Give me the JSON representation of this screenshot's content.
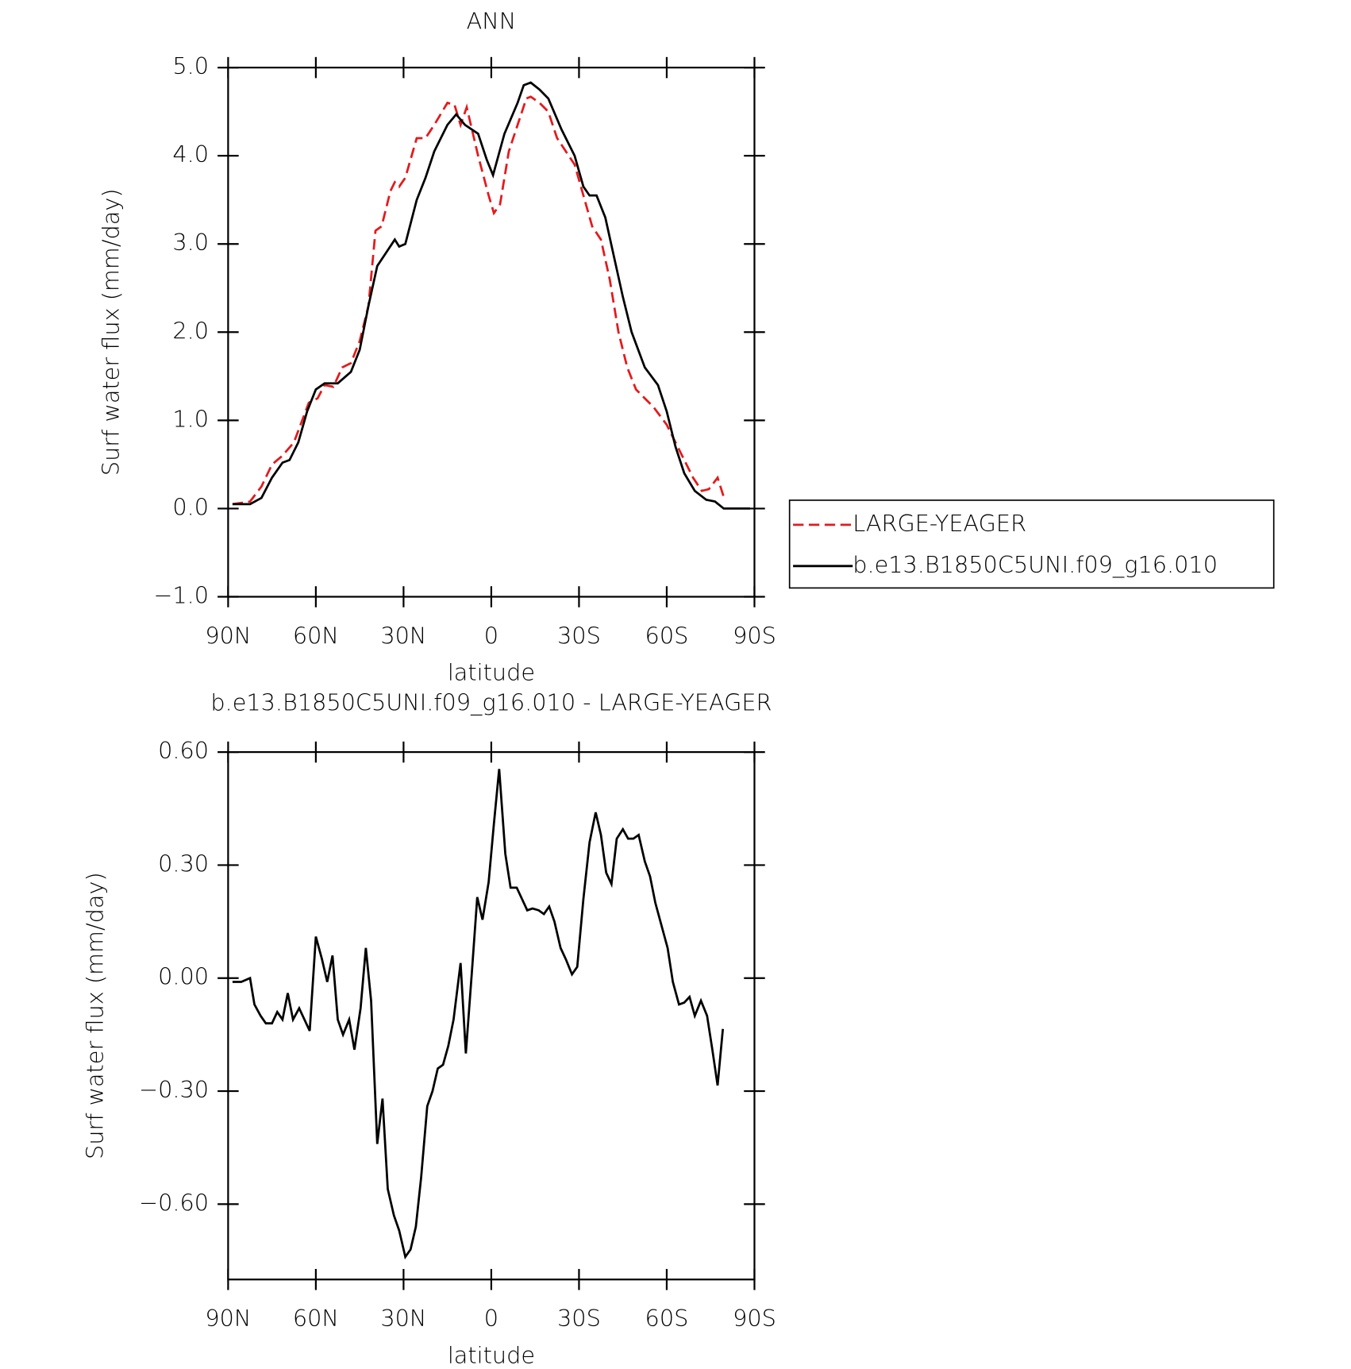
{
  "chart_data": [
    {
      "type": "line",
      "title": "ANN",
      "xlabel": "latitude",
      "ylabel": "Surf water flux (mm/day)",
      "xlim": [
        90,
        -90
      ],
      "xticks": [
        {
          "value": 90,
          "label": "90N"
        },
        {
          "value": 60,
          "label": "60N"
        },
        {
          "value": 30,
          "label": "30N"
        },
        0,
        {
          "value": -30,
          "label": "30S"
        },
        {
          "value": -60,
          "label": "60S"
        },
        {
          "value": -90,
          "label": "90S"
        }
      ],
      "ylim": [
        -1,
        5
      ],
      "yticks": [
        {
          "value": 5,
          "label": "5.0"
        },
        {
          "value": 4,
          "label": "4.0"
        },
        {
          "value": 3,
          "label": "3.0"
        },
        {
          "value": 2,
          "label": "2.0"
        },
        {
          "value": 1,
          "label": "1.0"
        },
        {
          "value": 0,
          "label": "0.0"
        },
        {
          "value": -1,
          "label": "−1.0"
        }
      ],
      "legend": "right",
      "series": [
        {
          "name": "LARGE-YEAGER",
          "color": "#e41a1c",
          "dash": true,
          "x": [
            88.5,
            82.5,
            78.6,
            75,
            71.4,
            67.5,
            62.4,
            59.4,
            57,
            54,
            51,
            48,
            45,
            42,
            39.6,
            37.5,
            34.5,
            33,
            31.5,
            29.4,
            25.5,
            22.5,
            19.5,
            15,
            12.6,
            10.5,
            8.4,
            4.5,
            0.9,
            -0.9,
            -3,
            -6,
            -9,
            -12,
            -13.5,
            -16.5,
            -19.5,
            -22.5,
            -25.5,
            -28.5,
            -31.5,
            -34.5,
            -37.5,
            -40.5,
            -43.5,
            -46.5,
            -49.5,
            -52.5,
            -55.5,
            -60,
            -66,
            -69,
            -72,
            -74.4,
            -77.4,
            -79.8
          ],
          "values": [
            0.05,
            0.08,
            0.25,
            0.5,
            0.6,
            0.75,
            1.2,
            1.25,
            1.4,
            1.38,
            1.6,
            1.65,
            1.9,
            2.3,
            3.15,
            3.2,
            3.6,
            3.7,
            3.65,
            3.75,
            4.2,
            4.2,
            4.35,
            4.6,
            4.58,
            4.35,
            4.55,
            4.0,
            3.55,
            3.35,
            3.45,
            4.05,
            4.35,
            4.65,
            4.67,
            4.6,
            4.5,
            4.2,
            4.05,
            3.9,
            3.55,
            3.2,
            3.05,
            2.6,
            2.0,
            1.6,
            1.35,
            1.25,
            1.15,
            0.95,
            0.55,
            0.35,
            0.2,
            0.22,
            0.35,
            0.1
          ]
        },
        {
          "name": "b.e13.B1850C5UNI.f09_g16.010",
          "color": "#000000",
          "dash": false,
          "x": [
            88.5,
            82.5,
            78.6,
            75,
            71.4,
            69,
            66,
            63,
            60,
            57,
            52.5,
            48,
            45,
            42,
            39,
            36,
            33,
            31.5,
            29.4,
            25.5,
            22.5,
            19.5,
            15,
            12,
            9,
            4.5,
            1.5,
            -0.6,
            -4.5,
            -9,
            -11.1,
            -13.5,
            -16.5,
            -19.5,
            -24,
            -28.5,
            -31.5,
            -33.6,
            -36,
            -39,
            -42,
            -45,
            -48,
            -52.5,
            -57,
            -60,
            -63,
            -66,
            -69.6,
            -73.5,
            -76.5,
            -79.5,
            -84,
            -88.5
          ],
          "values": [
            0.05,
            0.05,
            0.12,
            0.35,
            0.52,
            0.55,
            0.75,
            1.1,
            1.35,
            1.42,
            1.42,
            1.55,
            1.8,
            2.3,
            2.75,
            2.9,
            3.05,
            2.97,
            3.0,
            3.5,
            3.75,
            4.05,
            4.35,
            4.47,
            4.35,
            4.25,
            3.95,
            3.78,
            4.25,
            4.6,
            4.8,
            4.83,
            4.75,
            4.65,
            4.3,
            4.0,
            3.65,
            3.55,
            3.55,
            3.3,
            2.85,
            2.4,
            2.0,
            1.6,
            1.4,
            1.1,
            0.7,
            0.4,
            0.2,
            0.1,
            0.08,
            0.0,
            0.0,
            0.0
          ]
        }
      ]
    },
    {
      "type": "line",
      "title": "b.e13.B1850C5UNI.f09_g16.010 - LARGE-YEAGER",
      "xlabel": "latitude",
      "ylabel": "Surf water flux (mm/day)",
      "xlim": [
        90,
        -90
      ],
      "xticks": [
        {
          "value": 90,
          "label": "90N"
        },
        {
          "value": 60,
          "label": "60N"
        },
        {
          "value": 30,
          "label": "30N"
        },
        0,
        {
          "value": -30,
          "label": "30S"
        },
        {
          "value": -60,
          "label": "60S"
        },
        {
          "value": -90,
          "label": "90S"
        }
      ],
      "ylim": [
        -0.8,
        0.6
      ],
      "yticks": [
        {
          "value": 0.6,
          "label": "0.60"
        },
        {
          "value": 0.3,
          "label": "0.30"
        },
        {
          "value": 0,
          "label": "0.00"
        },
        {
          "value": -0.3,
          "label": "−0.30"
        },
        {
          "value": -0.6,
          "label": "−0.60"
        }
      ],
      "series": [
        {
          "color": "#000000",
          "dash": false,
          "x": [
            88.5,
            85.5,
            82.5,
            81,
            78.9,
            77.1,
            75,
            73.2,
            71.4,
            69.6,
            67.8,
            65.7,
            63.9,
            62.1,
            60,
            57.9,
            56.1,
            54.3,
            52.5,
            50.7,
            48.6,
            46.8,
            44.7,
            42.9,
            41.1,
            39,
            37.2,
            35.4,
            33.3,
            31.5,
            29.4,
            27.6,
            25.8,
            24,
            21.9,
            20.1,
            18.3,
            16.5,
            14.7,
            12.9,
            10.5,
            8.7,
            6.6,
            4.8,
            3,
            0.9,
            -0.9,
            -2.7,
            -4.8,
            -6.6,
            -8.7,
            -10.5,
            -12.3,
            -14.1,
            -16.2,
            -18,
            -19.8,
            -21.6,
            -23.7,
            -25.5,
            -27.6,
            -29.4,
            -31.5,
            -33.6,
            -35.7,
            -37.5,
            -39.3,
            -41.1,
            -42.9,
            -45,
            -46.8,
            -48.6,
            -50.4,
            -52.5,
            -54.3,
            -56.1,
            -58.2,
            -60.3,
            -62.1,
            -64.2,
            -66,
            -67.8,
            -69.6,
            -71.7,
            -73.8,
            -75.6,
            -77.4,
            -79.2
          ],
          "values": [
            -0.01,
            -0.01,
            0.0,
            -0.07,
            -0.1,
            -0.12,
            -0.12,
            -0.09,
            -0.11,
            -0.04,
            -0.11,
            -0.08,
            -0.11,
            -0.14,
            0.11,
            0.05,
            -0.01,
            0.06,
            -0.11,
            -0.15,
            -0.11,
            -0.19,
            -0.08,
            0.08,
            -0.06,
            -0.44,
            -0.32,
            -0.56,
            -0.63,
            -0.67,
            -0.74,
            -0.72,
            -0.66,
            -0.53,
            -0.34,
            -0.3,
            -0.24,
            -0.23,
            -0.18,
            -0.11,
            0.04,
            -0.2,
            0.02,
            0.215,
            0.155,
            0.255,
            0.41,
            0.555,
            0.33,
            0.24,
            0.24,
            0.21,
            0.18,
            0.185,
            0.18,
            0.17,
            0.19,
            0.15,
            0.08,
            0.05,
            0.01,
            0.03,
            0.21,
            0.36,
            0.44,
            0.38,
            0.28,
            0.25,
            0.37,
            0.395,
            0.37,
            0.37,
            0.38,
            0.31,
            0.27,
            0.2,
            0.14,
            0.08,
            -0.01,
            -0.07,
            -0.065,
            -0.05,
            -0.1,
            -0.06,
            -0.1,
            -0.19,
            -0.285,
            -0.135
          ]
        }
      ]
    }
  ]
}
